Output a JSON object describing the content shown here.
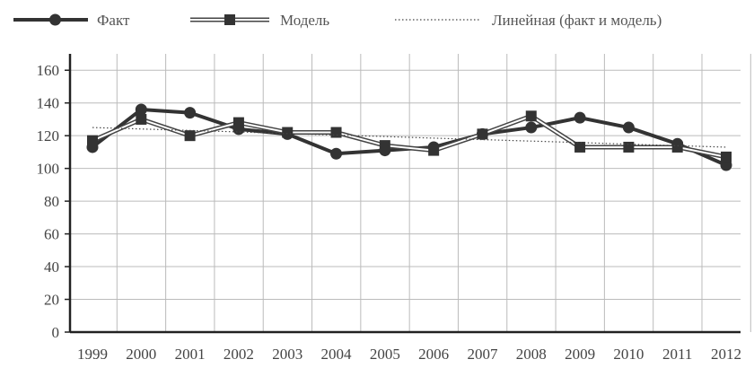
{
  "chart_data": {
    "type": "line",
    "title": "",
    "xlabel": "",
    "ylabel": "",
    "categories": [
      "1999",
      "2000",
      "2001",
      "2002",
      "2003",
      "2004",
      "2005",
      "2006",
      "2007",
      "2008",
      "2009",
      "2010",
      "2011",
      "2012"
    ],
    "ylim": [
      0,
      170
    ],
    "yticks": [
      0,
      20,
      40,
      60,
      80,
      100,
      120,
      140,
      160
    ],
    "grid": true,
    "legend_position": "top",
    "series": [
      {
        "name": "Факт",
        "marker": "circle",
        "style": "thick",
        "values": [
          113,
          136,
          134,
          124,
          121,
          109,
          111,
          113,
          121,
          125,
          131,
          125,
          115,
          102
        ]
      },
      {
        "name": "Модель",
        "marker": "square",
        "style": "double",
        "values": [
          117,
          130,
          120,
          128,
          122,
          122,
          114,
          111,
          121,
          132,
          113,
          113,
          113,
          107
        ]
      },
      {
        "name": "Линейная (факт и модель)",
        "marker": "none",
        "style": "dotted",
        "values": [
          125,
          124.1,
          123.2,
          122.3,
          121.3,
          120.4,
          119.5,
          118.5,
          117.6,
          116.7,
          115.8,
          114.8,
          113.9,
          113
        ]
      }
    ],
    "colors": {
      "line": "#333333",
      "grid": "#bbbbbb",
      "axis": "#222222"
    }
  }
}
